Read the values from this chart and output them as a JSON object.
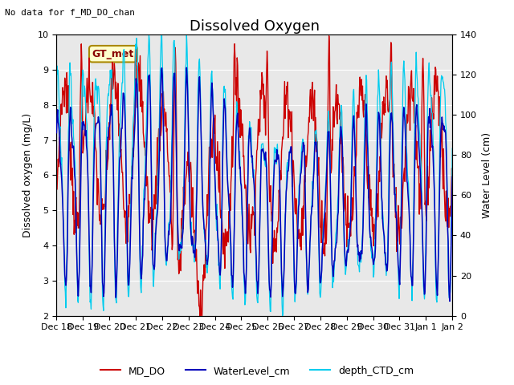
{
  "title": "Dissolved Oxygen",
  "top_left_text": "No data for f_MD_DO_chan",
  "legend_label_text": "GT_met",
  "ylabel_left": "Dissolved oxygen (mg/L)",
  "ylabel_right": "Water Level (cm)",
  "ylim_left": [
    2.0,
    10.0
  ],
  "ylim_right": [
    0,
    140
  ],
  "yticks_left": [
    2.0,
    3.0,
    4.0,
    5.0,
    6.0,
    7.0,
    8.0,
    9.0,
    10.0
  ],
  "yticks_right": [
    0,
    20,
    40,
    60,
    80,
    100,
    120,
    140
  ],
  "xtick_labels": [
    "Dec 18",
    "Dec 19",
    "Dec 20",
    "Dec 21",
    "Dec 22",
    "Dec 23",
    "Dec 24",
    "Dec 25",
    "Dec 26",
    "Dec 27",
    "Dec 28",
    "Dec 29",
    "Dec 30",
    "Dec 31",
    "Jan 1",
    "Jan 2"
  ],
  "color_MD_DO": "#cc0000",
  "color_WaterLevel": "#0000bb",
  "color_depth_CTD": "#00ccee",
  "color_GT_met_text": "#880000",
  "color_GT_met_box_face": "#ffffcc",
  "color_GT_met_box_edge": "#aa8800",
  "bg_color": "#e8e8e8",
  "legend_labels": [
    "MD_DO",
    "WaterLevel_cm",
    "depth_CTD_cm"
  ],
  "title_fontsize": 13,
  "label_fontsize": 9,
  "tick_fontsize": 8
}
